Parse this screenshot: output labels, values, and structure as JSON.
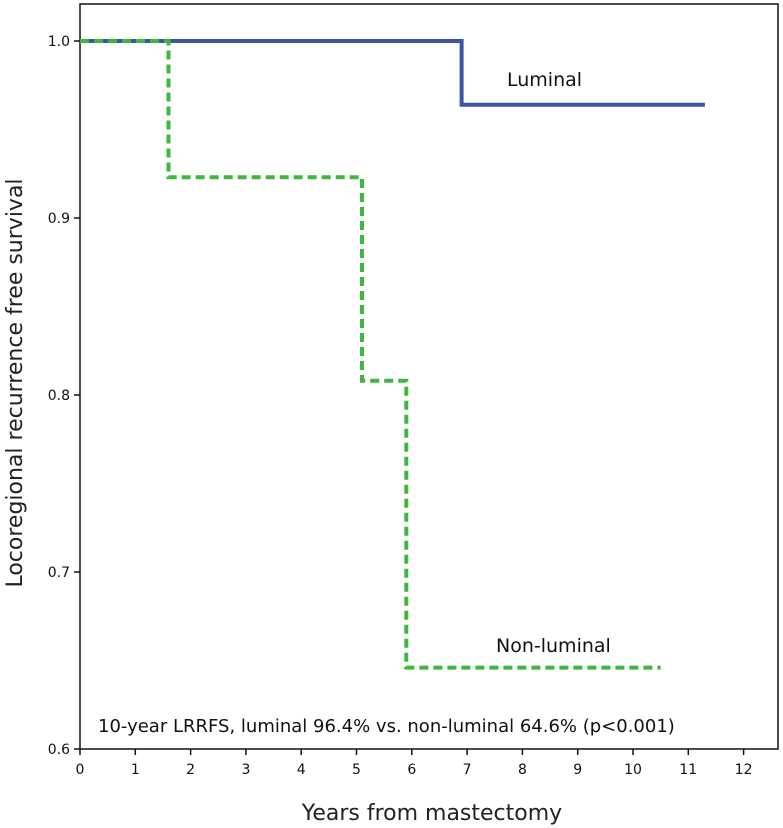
{
  "chart_data": {
    "type": "line",
    "subtype": "kaplan-meier-step",
    "title": "",
    "xlabel": "Years from mastectomy",
    "ylabel": "Locoregional recurrence free survival",
    "xlim": [
      0,
      12.6
    ],
    "ylim": [
      0.6,
      1.02
    ],
    "xticks": [
      0,
      1,
      2,
      3,
      4,
      5,
      6,
      7,
      8,
      9,
      10,
      11,
      12
    ],
    "yticks": [
      0.6,
      0.7,
      0.8,
      0.9,
      1.0
    ],
    "ytick_labels": [
      "0.6",
      "0.7",
      "0.8",
      "0.9",
      "1.0"
    ],
    "grid": false,
    "series": [
      {
        "name": "Luminal",
        "color": "#3a55a4",
        "style": "solid",
        "points": [
          [
            0,
            1.0
          ],
          [
            6.9,
            1.0
          ],
          [
            6.9,
            0.964
          ],
          [
            11.3,
            0.964
          ]
        ]
      },
      {
        "name": "Non-luminal",
        "color": "#3cb83c",
        "style": "dashed",
        "points": [
          [
            0,
            1.0
          ],
          [
            1.6,
            1.0
          ],
          [
            1.6,
            0.923
          ],
          [
            5.1,
            0.923
          ],
          [
            5.1,
            0.808
          ],
          [
            5.9,
            0.808
          ],
          [
            5.9,
            0.646
          ],
          [
            10.5,
            0.646
          ]
        ]
      }
    ],
    "labels": {
      "luminal": "Luminal",
      "nonluminal": "Non-luminal"
    },
    "annotation": "10-year LRRFS, luminal 96.4% vs. non-luminal 64.6% (p<0.001)"
  }
}
